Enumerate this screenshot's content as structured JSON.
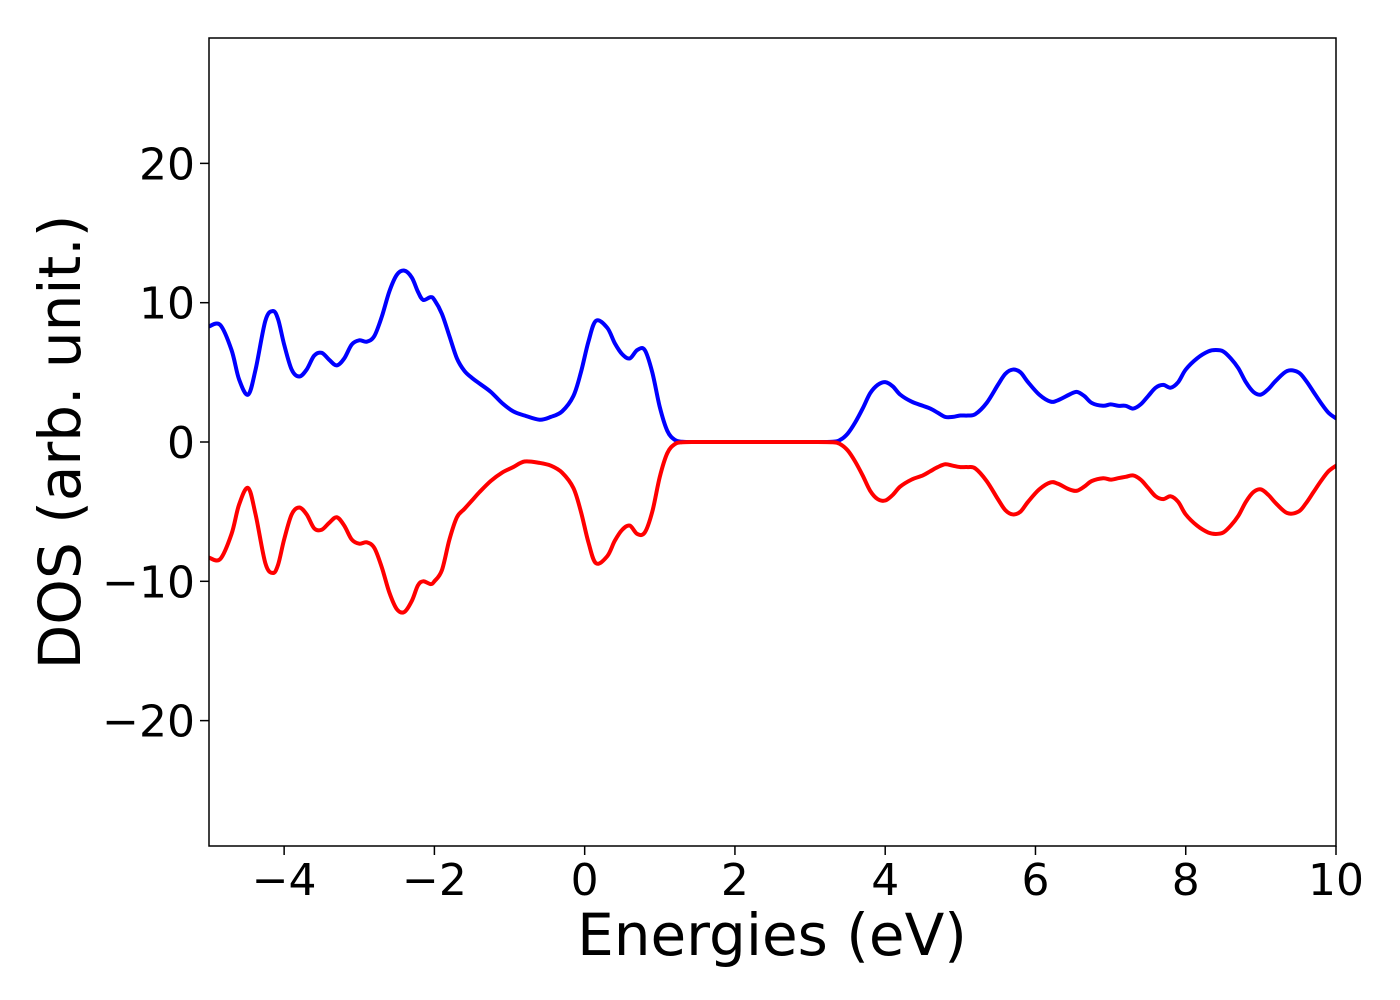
{
  "chart_data": {
    "type": "line",
    "title": "",
    "xlabel": "Energies (eV)",
    "ylabel": "DOS (arb. unit.)",
    "xlim": [
      -5,
      10
    ],
    "ylim": [
      -29,
      29
    ],
    "xticks": [
      -4,
      -2,
      0,
      2,
      4,
      6,
      8,
      10
    ],
    "xtick_labels": [
      "−4",
      "−2",
      "0",
      "2",
      "4",
      "6",
      "8",
      "10"
    ],
    "yticks": [
      20,
      10,
      0,
      -10,
      -20
    ],
    "ytick_labels": [
      "20",
      "10",
      "0",
      "−10",
      "−20"
    ],
    "grid": false,
    "legend": "none",
    "series": [
      {
        "color": "#0000ff",
        "x": [
          -5.0,
          -4.85,
          -4.7,
          -4.6,
          -4.48,
          -4.38,
          -4.25,
          -4.15,
          -4.08,
          -4.0,
          -3.9,
          -3.8,
          -3.7,
          -3.6,
          -3.5,
          -3.4,
          -3.3,
          -3.2,
          -3.1,
          -3.0,
          -2.9,
          -2.8,
          -2.7,
          -2.6,
          -2.5,
          -2.4,
          -2.3,
          -2.22,
          -2.15,
          -2.05,
          -2.0,
          -1.9,
          -1.8,
          -1.7,
          -1.6,
          -1.5,
          -1.4,
          -1.25,
          -1.1,
          -0.95,
          -0.8,
          -0.6,
          -0.45,
          -0.3,
          -0.15,
          -0.05,
          0.05,
          0.15,
          0.3,
          0.4,
          0.5,
          0.6,
          0.7,
          0.8,
          0.9,
          1.0,
          1.1,
          1.2,
          1.3,
          1.5,
          2.0,
          2.5,
          3.0,
          3.3,
          3.4,
          3.5,
          3.6,
          3.7,
          3.8,
          3.9,
          4.0,
          4.1,
          4.2,
          4.35,
          4.5,
          4.6,
          4.7,
          4.8,
          4.9,
          5.0,
          5.1,
          5.2,
          5.35,
          5.5,
          5.6,
          5.7,
          5.8,
          5.9,
          6.05,
          6.2,
          6.3,
          6.45,
          6.55,
          6.65,
          6.75,
          6.9,
          7.0,
          7.1,
          7.2,
          7.3,
          7.4,
          7.5,
          7.6,
          7.7,
          7.8,
          7.9,
          8.0,
          8.15,
          8.3,
          8.4,
          8.5,
          8.6,
          8.7,
          8.8,
          8.9,
          9.0,
          9.1,
          9.2,
          9.35,
          9.5,
          9.6,
          9.7,
          9.8,
          9.9,
          10.0
        ],
        "values": [
          8.3,
          8.4,
          6.6,
          4.5,
          3.4,
          5.2,
          8.7,
          9.4,
          8.8,
          7.0,
          5.2,
          4.7,
          5.2,
          6.2,
          6.4,
          5.9,
          5.5,
          6.0,
          7.0,
          7.3,
          7.2,
          7.6,
          9.0,
          10.8,
          12.0,
          12.3,
          11.8,
          10.8,
          10.2,
          10.4,
          10.2,
          9.2,
          7.6,
          6.0,
          5.1,
          4.6,
          4.2,
          3.6,
          2.8,
          2.2,
          1.9,
          1.6,
          1.8,
          2.2,
          3.3,
          5.0,
          7.2,
          8.7,
          8.2,
          7.1,
          6.3,
          6.0,
          6.6,
          6.6,
          5.0,
          2.5,
          0.8,
          0.15,
          0.02,
          0.0,
          0.0,
          0.0,
          0.0,
          0.02,
          0.15,
          0.6,
          1.4,
          2.4,
          3.5,
          4.1,
          4.3,
          4.0,
          3.4,
          2.9,
          2.6,
          2.4,
          2.1,
          1.8,
          1.8,
          1.9,
          1.9,
          2.0,
          2.8,
          4.1,
          4.9,
          5.2,
          5.0,
          4.3,
          3.4,
          2.9,
          3.0,
          3.4,
          3.6,
          3.3,
          2.8,
          2.6,
          2.7,
          2.6,
          2.6,
          2.4,
          2.7,
          3.3,
          3.9,
          4.1,
          3.9,
          4.3,
          5.2,
          6.0,
          6.5,
          6.6,
          6.5,
          6.0,
          5.3,
          4.3,
          3.6,
          3.4,
          3.8,
          4.4,
          5.1,
          5.0,
          4.4,
          3.6,
          2.8,
          2.1,
          1.7
        ]
      },
      {
        "color": "#ff0000",
        "x": [
          -5.0,
          -4.85,
          -4.7,
          -4.6,
          -4.48,
          -4.38,
          -4.25,
          -4.15,
          -4.08,
          -4.0,
          -3.9,
          -3.8,
          -3.7,
          -3.6,
          -3.5,
          -3.4,
          -3.3,
          -3.2,
          -3.1,
          -3.0,
          -2.9,
          -2.8,
          -2.7,
          -2.6,
          -2.5,
          -2.4,
          -2.3,
          -2.22,
          -2.15,
          -2.05,
          -2.0,
          -1.9,
          -1.8,
          -1.7,
          -1.6,
          -1.5,
          -1.4,
          -1.25,
          -1.1,
          -0.95,
          -0.8,
          -0.6,
          -0.45,
          -0.3,
          -0.15,
          -0.05,
          0.05,
          0.15,
          0.3,
          0.4,
          0.5,
          0.6,
          0.7,
          0.8,
          0.9,
          1.0,
          1.1,
          1.2,
          1.3,
          1.5,
          2.0,
          2.5,
          3.0,
          3.3,
          3.4,
          3.5,
          3.6,
          3.7,
          3.8,
          3.9,
          4.0,
          4.1,
          4.2,
          4.35,
          4.5,
          4.6,
          4.7,
          4.8,
          4.9,
          5.0,
          5.1,
          5.2,
          5.35,
          5.5,
          5.6,
          5.7,
          5.8,
          5.9,
          6.05,
          6.2,
          6.3,
          6.45,
          6.55,
          6.65,
          6.75,
          6.9,
          7.0,
          7.1,
          7.2,
          7.3,
          7.4,
          7.5,
          7.6,
          7.7,
          7.8,
          7.9,
          8.0,
          8.15,
          8.3,
          8.4,
          8.5,
          8.6,
          8.7,
          8.8,
          8.9,
          9.0,
          9.1,
          9.2,
          9.35,
          9.5,
          9.6,
          9.7,
          9.8,
          9.9,
          10.0
        ],
        "values": [
          -8.3,
          -8.4,
          -6.6,
          -4.5,
          -3.3,
          -5.2,
          -8.7,
          -9.4,
          -8.8,
          -7.0,
          -5.2,
          -4.7,
          -5.2,
          -6.2,
          -6.3,
          -5.8,
          -5.4,
          -6.0,
          -7.0,
          -7.3,
          -7.2,
          -7.6,
          -9.0,
          -10.8,
          -12.0,
          -12.2,
          -11.4,
          -10.3,
          -10.0,
          -10.2,
          -10.0,
          -9.2,
          -7.0,
          -5.4,
          -4.8,
          -4.2,
          -3.6,
          -2.8,
          -2.2,
          -1.8,
          -1.4,
          -1.5,
          -1.7,
          -2.2,
          -3.3,
          -5.0,
          -7.2,
          -8.7,
          -8.2,
          -7.1,
          -6.3,
          -6.0,
          -6.6,
          -6.5,
          -5.0,
          -2.5,
          -0.8,
          -0.15,
          -0.02,
          0.0,
          0.0,
          0.0,
          0.0,
          -0.02,
          -0.15,
          -0.6,
          -1.4,
          -2.4,
          -3.5,
          -4.1,
          -4.2,
          -3.8,
          -3.2,
          -2.7,
          -2.4,
          -2.1,
          -1.8,
          -1.6,
          -1.7,
          -1.8,
          -1.8,
          -1.9,
          -2.8,
          -4.1,
          -4.9,
          -5.2,
          -5.0,
          -4.3,
          -3.4,
          -2.9,
          -3.0,
          -3.4,
          -3.5,
          -3.2,
          -2.8,
          -2.6,
          -2.7,
          -2.6,
          -2.5,
          -2.4,
          -2.7,
          -3.3,
          -3.9,
          -4.1,
          -3.9,
          -4.3,
          -5.2,
          -6.0,
          -6.5,
          -6.6,
          -6.5,
          -6.0,
          -5.3,
          -4.3,
          -3.6,
          -3.4,
          -3.8,
          -4.4,
          -5.1,
          -5.0,
          -4.4,
          -3.6,
          -2.8,
          -2.1,
          -1.7
        ]
      }
    ]
  }
}
